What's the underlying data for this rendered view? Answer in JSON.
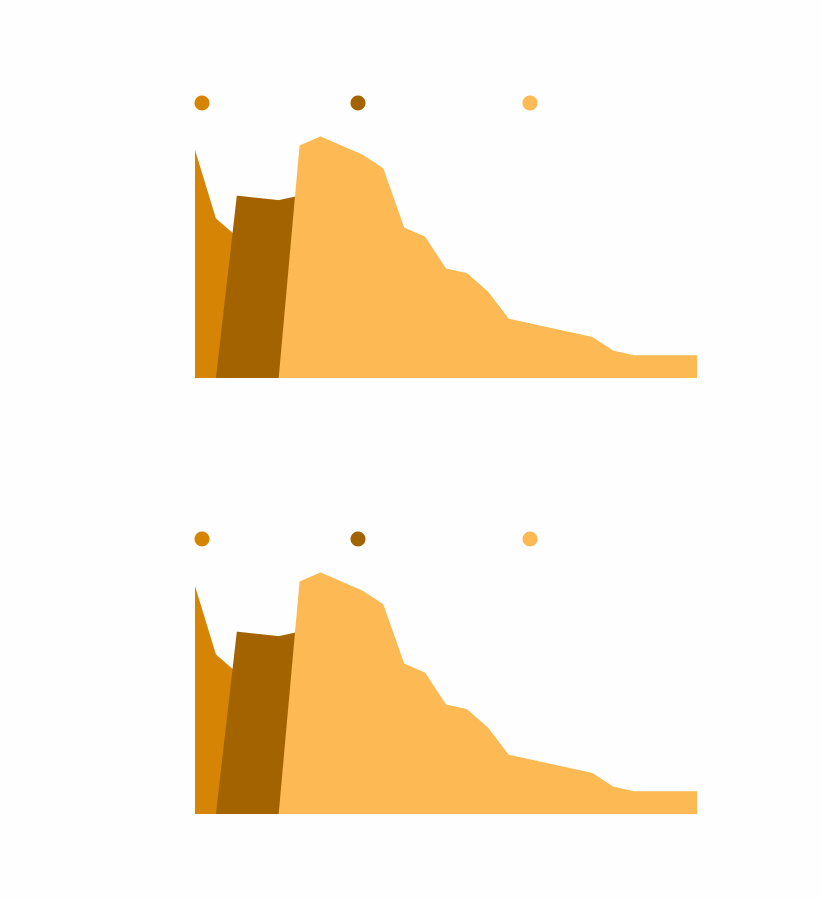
{
  "colors": {
    "background": "#fefefe",
    "series_1": "#d68404",
    "series_2": "#a36400",
    "series_3": "#fcb954"
  },
  "chart_data": [
    {
      "type": "area",
      "title": "",
      "xlabel": "",
      "ylabel": "",
      "grid": false,
      "legend_position": "top",
      "xlim": [
        0,
        24
      ],
      "ylim": [
        0,
        100
      ],
      "x": [
        0,
        1,
        2,
        3,
        4,
        5,
        6,
        7,
        8,
        9,
        10,
        11,
        12,
        13,
        14,
        15,
        16,
        17,
        18,
        19,
        20,
        21,
        22,
        23,
        24
      ],
      "series": [
        {
          "name": "",
          "color": "#d68404",
          "values": [
            100,
            70,
            62,
            42,
            30,
            20,
            8,
            6,
            4,
            2,
            1,
            1,
            0,
            0,
            0,
            0,
            0,
            0,
            0,
            0,
            0,
            0,
            0,
            0,
            0
          ]
        },
        {
          "name": "",
          "color": "#a36400",
          "values": [
            0,
            0,
            80,
            79,
            78,
            80,
            76,
            62,
            34,
            22,
            18,
            10,
            8,
            9,
            7,
            6,
            5,
            4,
            3,
            2,
            2,
            2,
            2,
            0,
            0
          ]
        },
        {
          "name": "",
          "color": "#fcb954",
          "values": [
            0,
            0,
            0,
            0,
            0,
            102,
            106,
            102,
            98,
            92,
            66,
            62,
            48,
            46,
            38,
            26,
            24,
            22,
            20,
            18,
            12,
            10,
            10,
            10,
            10
          ]
        }
      ]
    },
    {
      "type": "area",
      "title": "",
      "xlabel": "",
      "ylabel": "",
      "grid": false,
      "legend_position": "top",
      "xlim": [
        0,
        24
      ],
      "ylim": [
        0,
        100
      ],
      "x": [
        0,
        1,
        2,
        3,
        4,
        5,
        6,
        7,
        8,
        9,
        10,
        11,
        12,
        13,
        14,
        15,
        16,
        17,
        18,
        19,
        20,
        21,
        22,
        23,
        24
      ],
      "series": [
        {
          "name": "",
          "color": "#d68404",
          "values": [
            100,
            70,
            62,
            42,
            30,
            20,
            8,
            6,
            4,
            2,
            1,
            1,
            0,
            0,
            0,
            0,
            0,
            0,
            0,
            0,
            0,
            0,
            0,
            0,
            0
          ]
        },
        {
          "name": "",
          "color": "#a36400",
          "values": [
            0,
            0,
            80,
            79,
            78,
            80,
            76,
            62,
            34,
            22,
            18,
            10,
            8,
            9,
            7,
            6,
            5,
            4,
            3,
            2,
            2,
            2,
            2,
            0,
            0
          ]
        },
        {
          "name": "",
          "color": "#fcb954",
          "values": [
            0,
            0,
            0,
            0,
            0,
            102,
            106,
            102,
            98,
            92,
            66,
            62,
            48,
            46,
            38,
            26,
            24,
            22,
            20,
            18,
            12,
            10,
            10,
            10,
            10
          ]
        }
      ]
    }
  ]
}
